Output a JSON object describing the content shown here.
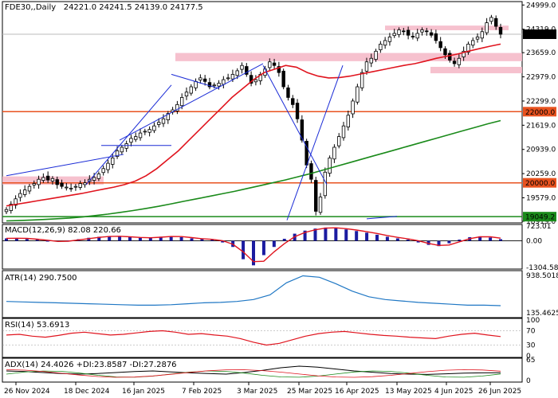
{
  "header": {
    "symbol_timeframe": "FDE30,,Daily",
    "ohlc": "24221.0 24241.5 24139.0 24177.5"
  },
  "price_axis": [
    "24999.0",
    "24319.0",
    "23659.0",
    "22979.0",
    "22299.0",
    "21619.0",
    "20939.0",
    "20259.0",
    "19579.0",
    "18919.0"
  ],
  "price_tags": [
    {
      "text": "24177.5",
      "value": 24177.5,
      "color": "#000000"
    },
    {
      "text": "22000.0",
      "value": 22000,
      "color": "#e8521f"
    },
    {
      "text": "20000.0",
      "value": 20000,
      "color": "#e8521f"
    },
    {
      "text": "19049.2",
      "value": 19049.2,
      "color": "#1a8a1a"
    }
  ],
  "date_axis": [
    "26 Nov 2024",
    "18 Dec 2024",
    "16 Jan 2025",
    "7 Feb 2025",
    "3 Mar 2025",
    "25 Mar 2025",
    "16 Apr 2025",
    "13 May 2025",
    "4 Jun 2025",
    "26 Jun 2025"
  ],
  "indicators": {
    "macd": {
      "label": "MACD(12,26,9) 82.08 220.66",
      "axis": [
        "723.01",
        "0.00",
        "-1304.58"
      ]
    },
    "atr": {
      "label": "ATR(14) 290.7500",
      "axis": [
        "938.5018",
        "135.4625"
      ]
    },
    "rsi": {
      "label": "RSI(14) 53.6913",
      "axis": [
        "100",
        "70",
        "30",
        "0"
      ]
    },
    "adx": {
      "label": "ADX(14) 24.4026 +DI:23.8587 -DI:27.2876",
      "axis": [
        "65",
        "0"
      ]
    }
  },
  "colors": {
    "bull": "#000000",
    "bear": "#000000",
    "ma_fast": "#e0141e",
    "ma_slow": "#1a8a1a",
    "level": "#e8521f",
    "zone": "#f4b6c6",
    "trend": "#1a2bd6",
    "macd_hist": "#1b1ba0",
    "macd_signal": "#e0141e",
    "atr": "#1f77c4",
    "rsi": "#e0141e",
    "adx": "#000000"
  },
  "chart_data": {
    "type": "candlestick",
    "symbol": "FDE30",
    "timeframe": "Daily",
    "last_ohlc": {
      "open": 24221.0,
      "high": 24241.5,
      "low": 24139.0,
      "close": 24177.5
    },
    "ylim": [
      18919,
      25050
    ],
    "horizontal_levels": [
      22000.0,
      20000.0,
      19049.2
    ],
    "resistance_zones": [
      [
        24290,
        24420
      ],
      [
        23420,
        23650
      ],
      [
        23080,
        23260
      ],
      [
        19950,
        20180
      ]
    ],
    "x_ticks": [
      "26 Nov 2024",
      "18 Dec 2024",
      "16 Jan 2025",
      "7 Feb 2025",
      "3 Mar 2025",
      "25 Mar 2025",
      "16 Apr 2025",
      "13 May 2025",
      "4 Jun 2025",
      "26 Jun 2025"
    ],
    "closes": [
      19250,
      19400,
      19550,
      19700,
      19800,
      19900,
      19980,
      20100,
      20150,
      20080,
      20120,
      19950,
      19900,
      19880,
      19850,
      19900,
      19980,
      20000,
      20100,
      20150,
      20250,
      20400,
      20550,
      20700,
      20900,
      21000,
      21100,
      21250,
      21300,
      21400,
      21450,
      21500,
      21600,
      21700,
      21800,
      21950,
      22050,
      22200,
      22400,
      22550,
      22700,
      22850,
      22950,
      22850,
      22700,
      22750,
      22800,
      22900,
      22950,
      23050,
      23150,
      23300,
      23050,
      22800,
      22900,
      23050,
      23200,
      23400,
      23300,
      23100,
      22700,
      22400,
      22200,
      21800,
      21200,
      20500,
      20100,
      19200,
      19600,
      20300,
      20700,
      21000,
      21300,
      21600,
      21900,
      22300,
      22700,
      23100,
      23400,
      23500,
      23700,
      23900,
      24000,
      24100,
      24200,
      24300,
      24250,
      24150,
      24100,
      24200,
      24300,
      24250,
      24150,
      24000,
      23800,
      23600,
      23450,
      23350,
      23500,
      23700,
      23900,
      24000,
      24100,
      24250,
      24500,
      24650,
      24400,
      24177.5
    ],
    "ma_fast": [
      19350,
      19400,
      19450,
      19500,
      19550,
      19600,
      19650,
      19700,
      19760,
      19820,
      19880,
      19950,
      20050,
      20200,
      20400,
      20650,
      20900,
      21200,
      21500,
      21800,
      22100,
      22400,
      22650,
      22900,
      23100,
      23200,
      23300,
      23250,
      23100,
      23000,
      22950,
      22960,
      23000,
      23060,
      23120,
      23180,
      23240,
      23300,
      23350,
      23420,
      23500,
      23560,
      23620,
      23700,
      23770,
      23840,
      23900
    ],
    "ma_slow": [
      18930,
      18940,
      18955,
      18970,
      18990,
      19010,
      19040,
      19080,
      19120,
      19170,
      19220,
      19280,
      19340,
      19410,
      19480,
      19550,
      19620,
      19690,
      19760,
      19840,
      19920,
      20000,
      20080,
      20170,
      20260,
      20360,
      20460,
      20560,
      20660,
      20760,
      20860,
      20960,
      21060,
      21160,
      21260,
      21360,
      21460,
      21560,
      21660,
      21750
    ],
    "series": [
      {
        "name": "MACD",
        "values": [
          120,
          140,
          90,
          60,
          -20,
          -40,
          20,
          80,
          150,
          200,
          230,
          210,
          180,
          140,
          160,
          200,
          230,
          180,
          120,
          80,
          60,
          -80,
          -300,
          -900,
          -1200,
          -700,
          -300,
          100,
          350,
          500,
          600,
          650,
          620,
          560,
          480,
          400,
          300,
          200,
          120,
          60,
          -80,
          -200,
          -260,
          -120,
          60,
          180,
          220,
          160,
          82
        ]
      },
      {
        "name": "ATR",
        "values": [
          380,
          370,
          360,
          350,
          340,
          330,
          320,
          310,
          300,
          300,
          310,
          330,
          350,
          360,
          380,
          420,
          520,
          780,
          930,
          900,
          760,
          600,
          480,
          420,
          390,
          360,
          340,
          320,
          300,
          300,
          290
        ]
      },
      {
        "name": "RSI",
        "values": [
          58,
          60,
          55,
          52,
          57,
          63,
          66,
          62,
          58,
          60,
          64,
          68,
          70,
          66,
          60,
          62,
          58,
          55,
          48,
          38,
          30,
          35,
          45,
          55,
          62,
          66,
          68,
          64,
          60,
          57,
          55,
          52,
          50,
          48,
          55,
          60,
          63,
          58,
          53.7
        ]
      },
      {
        "name": "ADX",
        "values": [
          30,
          28,
          25,
          22,
          20,
          22,
          25,
          28,
          30,
          27,
          24,
          22,
          20,
          25,
          32,
          40,
          45,
          42,
          36,
          30,
          26,
          22,
          20,
          19,
          21,
          23,
          24,
          24.4
        ]
      }
    ]
  }
}
